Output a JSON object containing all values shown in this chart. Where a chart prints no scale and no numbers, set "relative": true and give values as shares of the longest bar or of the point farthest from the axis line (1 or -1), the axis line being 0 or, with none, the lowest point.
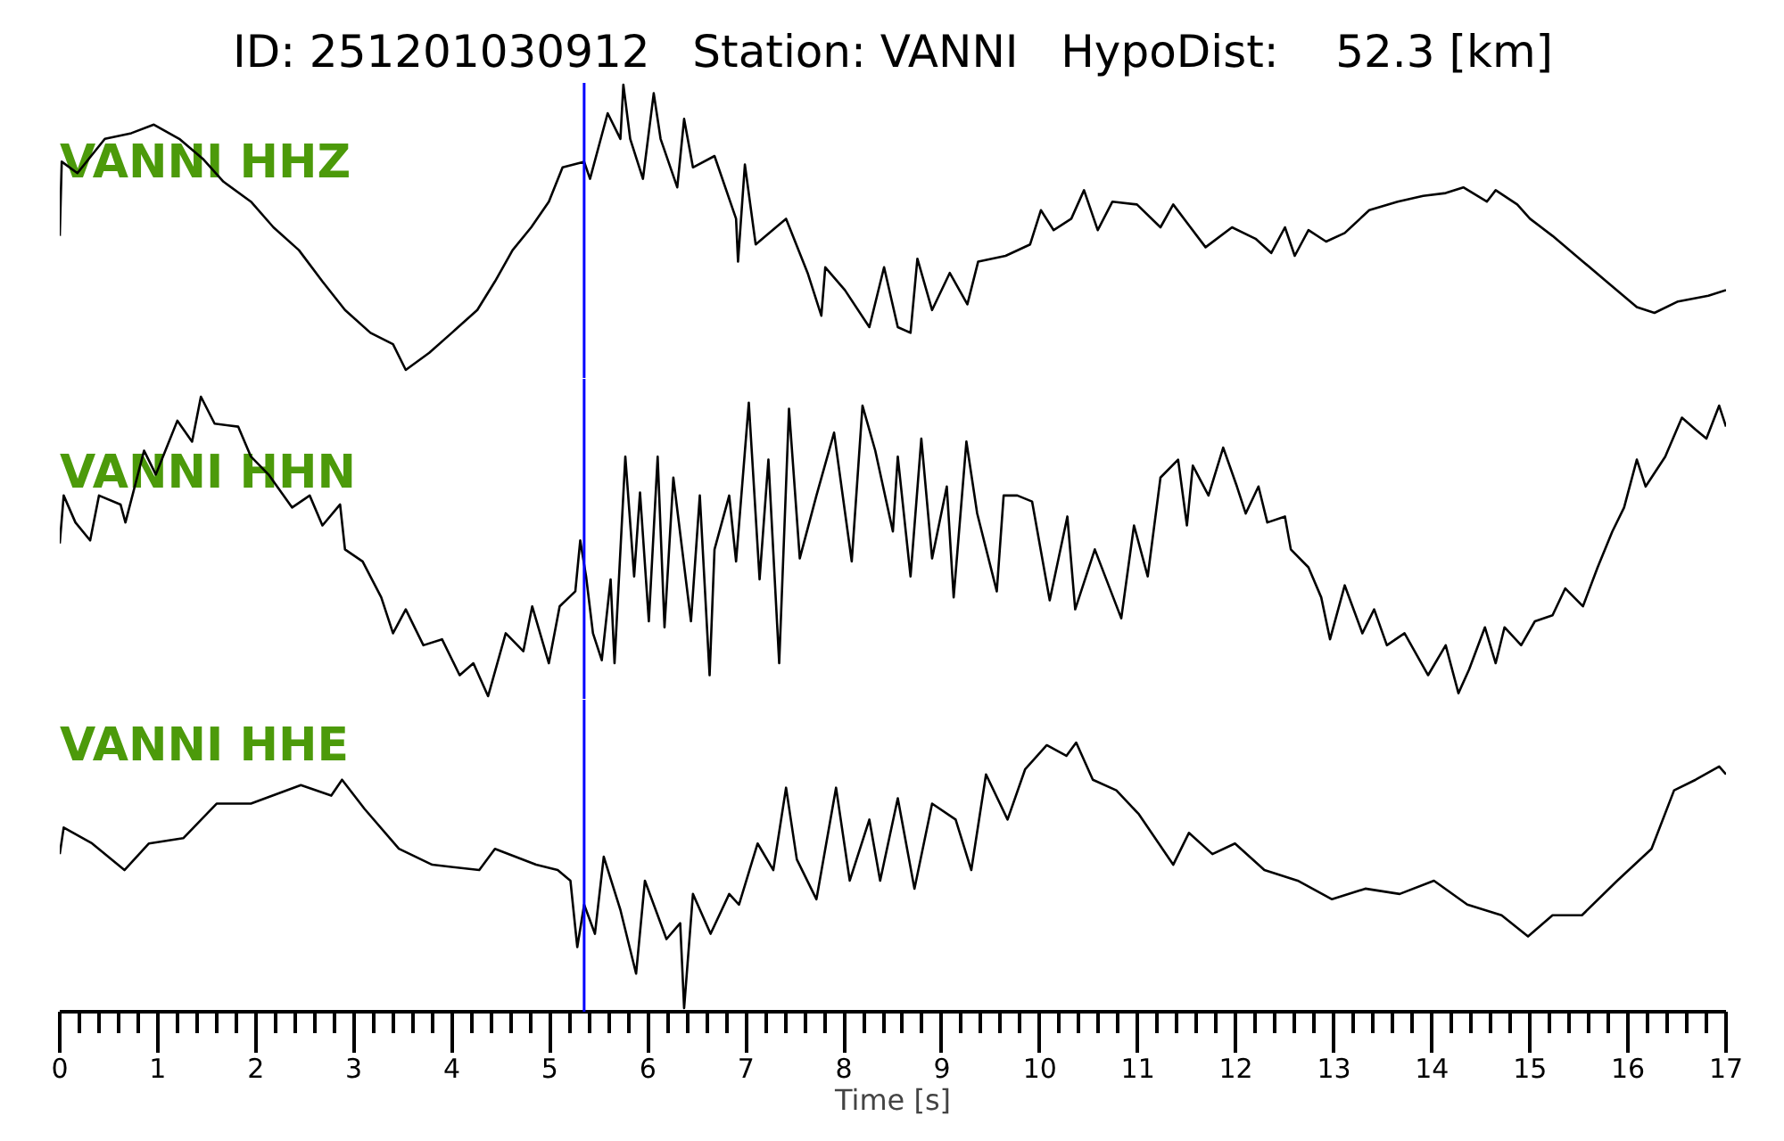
{
  "chart_data": [
    {
      "type": "line",
      "title": "ID: 251201030912   Station: VANNI   HypoDist:    52.3 [km]",
      "relative": true,
      "xlim": [
        0,
        17
      ],
      "tick_labels": false,
      "ref_lines": [
        {
          "axis": "x",
          "value": 5.35,
          "color": "#0000ff"
        }
      ],
      "x": [
        0,
        0.02,
        0.18,
        0.46,
        0.73,
        0.96,
        1.22,
        1.46,
        1.67,
        1.95,
        2.18,
        2.44,
        2.68,
        2.91,
        3.17,
        3.4,
        3.53,
        3.77,
        4.0,
        4.26,
        4.44,
        4.62,
        4.81,
        4.99,
        5.13,
        5.35,
        5.41,
        5.59,
        5.72,
        5.75,
        5.82,
        5.95,
        6.06,
        6.13,
        6.3,
        6.37,
        6.46,
        6.68,
        6.9,
        6.92,
        6.99,
        7.1,
        7.41,
        7.63,
        7.77,
        7.81,
        8.01,
        8.26,
        8.41,
        8.55,
        8.68,
        8.75,
        8.9,
        9.08,
        9.26,
        9.37,
        9.65,
        9.9,
        10.01,
        10.14,
        10.32,
        10.45,
        10.59,
        10.74,
        10.99,
        11.23,
        11.36,
        11.69,
        11.96,
        12.2,
        12.36,
        12.5,
        12.6,
        12.74,
        12.92,
        13.11,
        13.36,
        13.65,
        13.91,
        14.14,
        14.32,
        14.56,
        14.65,
        14.87,
        15.0,
        15.23,
        15.54,
        15.78,
        16.09,
        16.27,
        16.51,
        16.82,
        17.0
      ],
      "series": [
        {
          "name": "VANNI HHZ",
          "color": "#000000",
          "values": [
            0.47,
            0.73,
            0.69,
            0.81,
            0.83,
            0.86,
            0.81,
            0.74,
            0.66,
            0.59,
            0.5,
            0.42,
            0.31,
            0.21,
            0.13,
            0.09,
            0,
            0.06,
            0.13,
            0.21,
            0.31,
            0.42,
            0.5,
            0.59,
            0.71,
            0.73,
            0.67,
            0.9,
            0.81,
            1,
            0.81,
            0.67,
            0.97,
            0.81,
            0.64,
            0.88,
            0.71,
            0.75,
            0.53,
            0.38,
            0.72,
            0.44,
            0.53,
            0.34,
            0.19,
            0.36,
            0.28,
            0.15,
            0.36,
            0.15,
            0.13,
            0.39,
            0.21,
            0.34,
            0.23,
            0.38,
            0.4,
            0.44,
            0.56,
            0.49,
            0.53,
            0.63,
            0.49,
            0.59,
            0.58,
            0.5,
            0.58,
            0.43,
            0.5,
            0.46,
            0.41,
            0.5,
            0.4,
            0.49,
            0.45,
            0.48,
            0.56,
            0.59,
            0.61,
            0.62,
            0.64,
            0.59,
            0.63,
            0.58,
            0.53,
            0.47,
            0.38,
            0.31,
            0.22,
            0.2,
            0.24,
            0.26,
            0.28
          ]
        }
      ]
    },
    {
      "type": "line",
      "relative": true,
      "xlim": [
        0,
        17
      ],
      "tick_labels": false,
      "ref_lines": [
        {
          "axis": "x",
          "value": 5.35,
          "color": "#0000ff"
        }
      ],
      "x": [
        0,
        0.04,
        0.16,
        0.31,
        0.4,
        0.62,
        0.67,
        0.86,
        0.98,
        1.2,
        1.35,
        1.44,
        1.58,
        1.82,
        1.95,
        2.13,
        2.37,
        2.55,
        2.68,
        2.86,
        2.91,
        3.09,
        3.28,
        3.4,
        3.53,
        3.71,
        3.9,
        4.08,
        4.22,
        4.37,
        4.55,
        4.73,
        4.82,
        4.99,
        5.1,
        5.26,
        5.31,
        5.37,
        5.44,
        5.53,
        5.62,
        5.66,
        5.77,
        5.86,
        5.92,
        6.01,
        6.1,
        6.17,
        6.26,
        6.44,
        6.53,
        6.63,
        6.68,
        6.83,
        6.9,
        7.03,
        7.14,
        7.23,
        7.34,
        7.44,
        7.55,
        7.72,
        7.9,
        8.08,
        8.19,
        8.32,
        8.5,
        8.55,
        8.68,
        8.79,
        8.9,
        9.05,
        9.12,
        9.25,
        9.36,
        9.56,
        9.63,
        9.77,
        9.92,
        10.1,
        10.28,
        10.36,
        10.56,
        10.83,
        10.96,
        11.1,
        11.23,
        11.41,
        11.5,
        11.56,
        11.72,
        11.87,
        12.01,
        12.1,
        12.23,
        12.32,
        12.5,
        12.56,
        12.74,
        12.87,
        12.96,
        13.11,
        13.29,
        13.41,
        13.54,
        13.72,
        13.96,
        14.14,
        14.27,
        14.38,
        14.54,
        14.65,
        14.74,
        14.91,
        15.05,
        15.23,
        15.36,
        15.54,
        15.69,
        15.84,
        15.96,
        16.09,
        16.18,
        16.38,
        16.55,
        16.69,
        16.8,
        16.93,
        17.0
      ],
      "series": [
        {
          "name": "VANNI HHN",
          "color": "#000000",
          "values": [
            0.51,
            0.67,
            0.58,
            0.52,
            0.67,
            0.64,
            0.58,
            0.82,
            0.74,
            0.92,
            0.85,
            1,
            0.91,
            0.9,
            0.8,
            0.74,
            0.63,
            0.67,
            0.57,
            0.64,
            0.49,
            0.45,
            0.33,
            0.21,
            0.29,
            0.17,
            0.19,
            0.07,
            0.11,
            0,
            0.21,
            0.15,
            0.3,
            0.11,
            0.3,
            0.35,
            0.52,
            0.4,
            0.21,
            0.12,
            0.39,
            0.11,
            0.8,
            0.4,
            0.68,
            0.25,
            0.8,
            0.23,
            0.73,
            0.25,
            0.67,
            0.07,
            0.49,
            0.67,
            0.45,
            0.98,
            0.39,
            0.79,
            0.11,
            0.96,
            0.46,
            0.67,
            0.88,
            0.45,
            0.97,
            0.82,
            0.55,
            0.8,
            0.4,
            0.86,
            0.46,
            0.7,
            0.33,
            0.85,
            0.61,
            0.35,
            0.67,
            0.67,
            0.65,
            0.32,
            0.6,
            0.29,
            0.49,
            0.26,
            0.57,
            0.4,
            0.73,
            0.79,
            0.57,
            0.77,
            0.67,
            0.83,
            0.7,
            0.61,
            0.7,
            0.58,
            0.6,
            0.49,
            0.43,
            0.33,
            0.19,
            0.37,
            0.21,
            0.29,
            0.17,
            0.21,
            0.07,
            0.17,
            0.01,
            0.09,
            0.23,
            0.11,
            0.23,
            0.17,
            0.25,
            0.27,
            0.36,
            0.3,
            0.43,
            0.55,
            0.63,
            0.79,
            0.7,
            0.8,
            0.93,
            0.89,
            0.86,
            0.97,
            0.9
          ]
        }
      ]
    },
    {
      "type": "line",
      "relative": true,
      "xlabel": "Time [s]",
      "xlim": [
        0,
        17
      ],
      "tick_labels": "x",
      "xticks": [
        0,
        {
          "value": 0.2,
          "label": null
        },
        {
          "value": 0.4,
          "label": null
        },
        {
          "value": 0.6,
          "label": null
        },
        {
          "value": 0.8,
          "label": null
        },
        1,
        {
          "value": 1.2,
          "label": null
        },
        {
          "value": 1.4,
          "label": null
        },
        {
          "value": 1.6,
          "label": null
        },
        {
          "value": 1.8,
          "label": null
        },
        2,
        {
          "value": 2.2,
          "label": null
        },
        {
          "value": 2.4,
          "label": null
        },
        {
          "value": 2.6,
          "label": null
        },
        {
          "value": 2.8,
          "label": null
        },
        3,
        {
          "value": 3.2,
          "label": null
        },
        {
          "value": 3.4,
          "label": null
        },
        {
          "value": 3.6,
          "label": null
        },
        {
          "value": 3.8,
          "label": null
        },
        4,
        {
          "value": 4.2,
          "label": null
        },
        {
          "value": 4.4,
          "label": null
        },
        {
          "value": 4.6,
          "label": null
        },
        {
          "value": 4.8,
          "label": null
        },
        5,
        {
          "value": 5.2,
          "label": null
        },
        {
          "value": 5.4,
          "label": null
        },
        {
          "value": 5.6,
          "label": null
        },
        {
          "value": 5.8,
          "label": null
        },
        6,
        {
          "value": 6.2,
          "label": null
        },
        {
          "value": 6.4,
          "label": null
        },
        {
          "value": 6.6,
          "label": null
        },
        {
          "value": 6.8,
          "label": null
        },
        7,
        {
          "value": 7.2,
          "label": null
        },
        {
          "value": 7.4,
          "label": null
        },
        {
          "value": 7.6,
          "label": null
        },
        {
          "value": 7.8,
          "label": null
        },
        8,
        {
          "value": 8.2,
          "label": null
        },
        {
          "value": 8.4,
          "label": null
        },
        {
          "value": 8.6,
          "label": null
        },
        {
          "value": 8.8,
          "label": null
        },
        9,
        {
          "value": 9.2,
          "label": null
        },
        {
          "value": 9.4,
          "label": null
        },
        {
          "value": 9.6,
          "label": null
        },
        {
          "value": 9.8,
          "label": null
        },
        10,
        {
          "value": 10.2,
          "label": null
        },
        {
          "value": 10.4,
          "label": null
        },
        {
          "value": 10.6,
          "label": null
        },
        {
          "value": 10.8,
          "label": null
        },
        11,
        {
          "value": 11.2,
          "label": null
        },
        {
          "value": 11.4,
          "label": null
        },
        {
          "value": 11.6,
          "label": null
        },
        {
          "value": 11.8,
          "label": null
        },
        12,
        {
          "value": 12.2,
          "label": null
        },
        {
          "value": 12.4,
          "label": null
        },
        {
          "value": 12.6,
          "label": null
        },
        {
          "value": 12.8,
          "label": null
        },
        13,
        {
          "value": 13.2,
          "label": null
        },
        {
          "value": 13.4,
          "label": null
        },
        {
          "value": 13.6,
          "label": null
        },
        {
          "value": 13.8,
          "label": null
        },
        14,
        {
          "value": 14.2,
          "label": null
        },
        {
          "value": 14.4,
          "label": null
        },
        {
          "value": 14.6,
          "label": null
        },
        {
          "value": 14.8,
          "label": null
        },
        15,
        {
          "value": 15.2,
          "label": null
        },
        {
          "value": 15.4,
          "label": null
        },
        {
          "value": 15.6,
          "label": null
        },
        {
          "value": 15.8,
          "label": null
        },
        16,
        {
          "value": 16.2,
          "label": null
        },
        {
          "value": 16.4,
          "label": null
        },
        {
          "value": 16.6,
          "label": null
        },
        {
          "value": 16.8,
          "label": null
        },
        17
      ],
      "ref_lines": [
        {
          "axis": "x",
          "value": 5.35,
          "color": "#0000ff"
        }
      ],
      "x": [
        0,
        0.04,
        0.33,
        0.66,
        0.91,
        1.26,
        1.6,
        1.95,
        2.46,
        2.77,
        2.88,
        3.11,
        3.46,
        3.8,
        4.28,
        4.44,
        4.86,
        5.08,
        5.21,
        5.28,
        5.35,
        5.46,
        5.55,
        5.72,
        5.88,
        5.97,
        6.19,
        6.33,
        6.37,
        6.46,
        6.64,
        6.83,
        6.93,
        7.12,
        7.28,
        7.41,
        7.52,
        7.72,
        7.92,
        8.06,
        8.26,
        8.37,
        8.55,
        8.72,
        8.9,
        9.14,
        9.3,
        9.45,
        9.67,
        9.85,
        10.07,
        10.27,
        10.37,
        10.54,
        10.78,
        11.01,
        11.36,
        11.52,
        11.76,
        11.99,
        12.29,
        12.63,
        12.98,
        13.32,
        13.67,
        14.02,
        14.36,
        14.71,
        14.98,
        15.23,
        15.53,
        15.89,
        16.24,
        16.47,
        16.69,
        16.93,
        17.0
      ],
      "series": [
        {
          "name": "VANNI HHE",
          "color": "#000000",
          "values": [
            0.58,
            0.68,
            0.62,
            0.52,
            0.62,
            0.64,
            0.77,
            0.77,
            0.84,
            0.8,
            0.86,
            0.75,
            0.6,
            0.54,
            0.52,
            0.6,
            0.54,
            0.52,
            0.48,
            0.23,
            0.39,
            0.28,
            0.57,
            0.37,
            0.13,
            0.48,
            0.26,
            0.32,
            0,
            0.43,
            0.28,
            0.43,
            0.39,
            0.62,
            0.52,
            0.83,
            0.56,
            0.41,
            0.83,
            0.48,
            0.71,
            0.48,
            0.79,
            0.45,
            0.77,
            0.71,
            0.52,
            0.88,
            0.71,
            0.9,
            0.99,
            0.95,
            1,
            0.86,
            0.82,
            0.73,
            0.54,
            0.66,
            0.58,
            0.62,
            0.52,
            0.48,
            0.41,
            0.45,
            0.43,
            0.48,
            0.39,
            0.35,
            0.27,
            0.35,
            0.35,
            0.48,
            0.6,
            0.82,
            0.86,
            0.91,
            0.88
          ]
        }
      ]
    }
  ]
}
